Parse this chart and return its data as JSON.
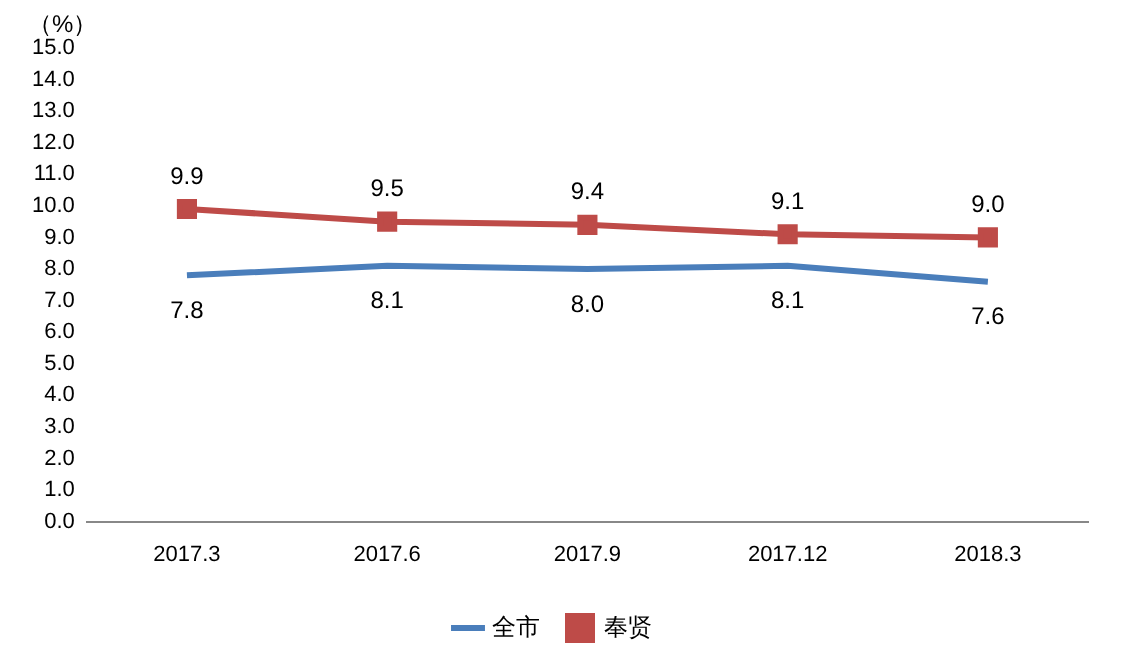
{
  "chart_data": {
    "type": "line",
    "ylabel": "（%）",
    "categories": [
      "2017.3",
      "2017.6",
      "2017.9",
      "2017.12",
      "2018.3"
    ],
    "series": [
      {
        "name": "全市",
        "color": "#4a7ebb",
        "values": [
          7.8,
          8.1,
          8.0,
          8.1,
          7.6
        ],
        "value_labels": [
          "7.8",
          "8.1",
          "8.0",
          "8.1",
          "7.6"
        ],
        "marker": "none"
      },
      {
        "name": "奉贤",
        "color": "#be4b48",
        "values": [
          9.9,
          9.5,
          9.4,
          9.1,
          9.0
        ],
        "value_labels": [
          "9.9",
          "9.5",
          "9.4",
          "9.1",
          "9.0"
        ],
        "marker": "square"
      }
    ],
    "ylim": [
      0,
      15
    ],
    "yticks": [
      {
        "value": 0,
        "label": "0.0"
      },
      {
        "value": 1,
        "label": "1.0"
      },
      {
        "value": 2,
        "label": "2.0"
      },
      {
        "value": 3,
        "label": "3.0"
      },
      {
        "value": 4,
        "label": "4.0"
      },
      {
        "value": 5,
        "label": "5.0"
      },
      {
        "value": 6,
        "label": "6.0"
      },
      {
        "value": 7,
        "label": "7.0"
      },
      {
        "value": 8,
        "label": "8.0"
      },
      {
        "value": 9,
        "label": "9.0"
      },
      {
        "value": 10,
        "label": "10.0"
      },
      {
        "value": 11,
        "label": "11.0"
      },
      {
        "value": 12,
        "label": "12.0"
      },
      {
        "value": 13,
        "label": "13.0"
      },
      {
        "value": 14,
        "label": "14.0"
      },
      {
        "value": 15,
        "label": "15.0"
      }
    ],
    "grid": false,
    "legend": "bottom",
    "line_style": "solid"
  }
}
